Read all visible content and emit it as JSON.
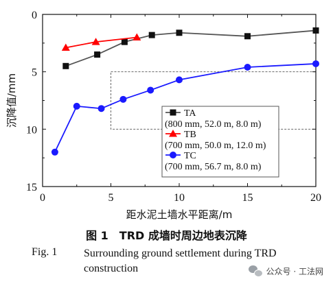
{
  "chart_data": {
    "type": "line",
    "xlabel": "距水泥土墙水平距离/m",
    "ylabel": "沉降值/mm",
    "xlim": [
      0,
      20
    ],
    "ylim": [
      0,
      15
    ],
    "y_inverted": true,
    "x_ticks": [
      0,
      5,
      10,
      15,
      20
    ],
    "y_ticks": [
      0,
      5,
      10,
      15
    ],
    "grid": "dashed box only",
    "legend_position": "bottom-right",
    "series": [
      {
        "name": "TA",
        "detail": "(800 mm, 52.0 m, 8.0 m)",
        "marker": "square",
        "color": "#555555",
        "marker_color": "#111111",
        "x": [
          1.7,
          4.0,
          6.0,
          8.0,
          10.0,
          15.0,
          20.0
        ],
        "y": [
          4.5,
          3.5,
          2.4,
          1.8,
          1.6,
          1.9,
          1.4
        ]
      },
      {
        "name": "TB",
        "detail": "(700 mm, 50.0 m, 12.0 m)",
        "marker": "triangle",
        "color": "#ff0000",
        "marker_color": "#ff0000",
        "x": [
          1.7,
          3.9,
          6.9
        ],
        "y": [
          2.9,
          2.4,
          2.0
        ]
      },
      {
        "name": "TC",
        "detail": "(700 mm, 56.7 m, 8.0 m)",
        "marker": "circle",
        "color": "#1a1aff",
        "marker_color": "#1a1aff",
        "x": [
          0.9,
          2.5,
          4.3,
          5.9,
          7.9,
          10.0,
          15.0,
          20.0
        ],
        "y": [
          12.0,
          8.0,
          8.2,
          7.4,
          6.6,
          5.7,
          4.6,
          4.3
        ]
      }
    ]
  },
  "caption": {
    "cn": "图 1　TRD 成墙时周边地表沉降",
    "en_label": "Fig. 1",
    "en_text": "Surrounding ground settlement during TRD construction"
  },
  "watermark": {
    "text": "公众号 · 工法网",
    "icon": "wechat-icon"
  }
}
